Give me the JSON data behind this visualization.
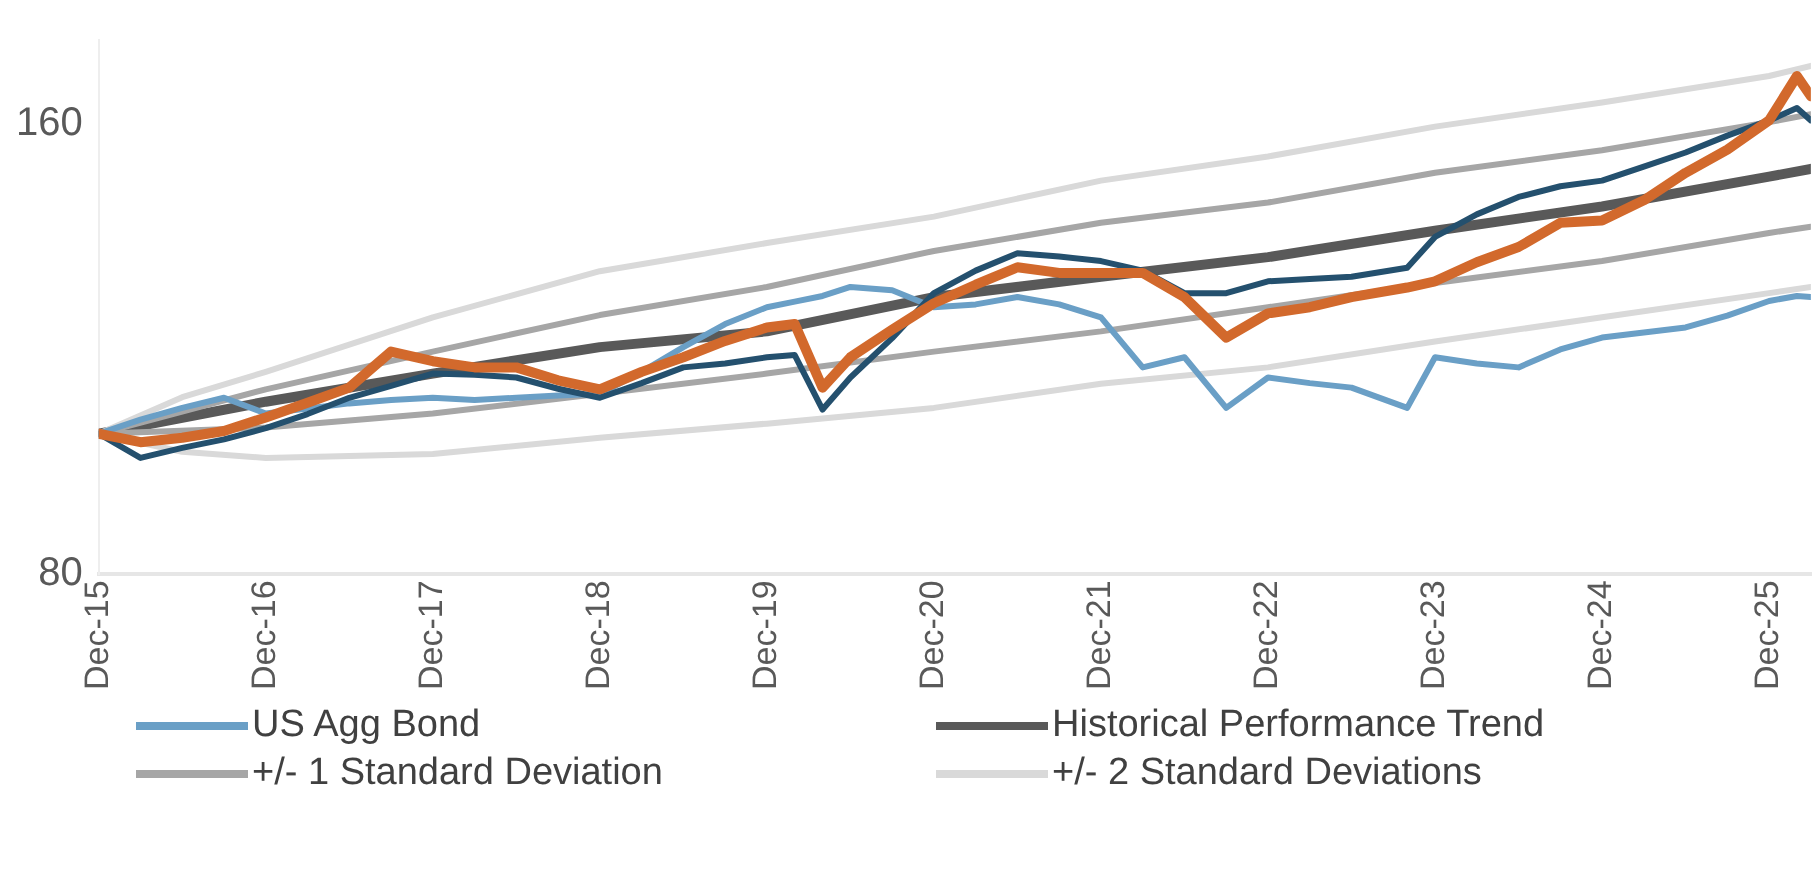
{
  "chart_data": {
    "type": "line",
    "x": [
      "2015-12",
      "2016-03",
      "2016-06",
      "2016-09",
      "2016-12",
      "2017-03",
      "2017-06",
      "2017-09",
      "2017-12",
      "2018-03",
      "2018-06",
      "2018-09",
      "2018-12",
      "2019-03",
      "2019-06",
      "2019-09",
      "2019-12",
      "2020-02",
      "2020-04",
      "2020-06",
      "2020-09",
      "2020-12",
      "2021-03",
      "2021-06",
      "2021-09",
      "2021-12",
      "2022-03",
      "2022-06",
      "2022-09",
      "2022-12",
      "2023-03",
      "2023-06",
      "2023-10",
      "2023-12",
      "2024-03",
      "2024-06",
      "2024-09",
      "2024-12",
      "2025-03",
      "2025-06",
      "2025-09",
      "2025-12",
      "2026-02",
      "2026-03"
    ],
    "series": [
      {
        "color": "#d2692c",
        "values": [
          105,
          103.5,
          104.3,
          105.5,
          107.9,
          110.5,
          113.2,
          119.6,
          117.9,
          116.8,
          116.8,
          114.5,
          112.9,
          116,
          118.6,
          121.5,
          123.9,
          124.5,
          113.2,
          118.6,
          123.5,
          128.2,
          131.5,
          134.6,
          133.6,
          133.6,
          133.6,
          129.3,
          122.1,
          126.4,
          127.5,
          129.3,
          131,
          132.1,
          135.5,
          138.2,
          142.5,
          142.9,
          146.5,
          151.4,
          155.5,
          160.7,
          168.6,
          165
        ]
      },
      {
        "color": "#24506e",
        "values": [
          105,
          100.7,
          102.5,
          104,
          106,
          108.5,
          111.4,
          113.5,
          115.7,
          115.5,
          115,
          113,
          111.4,
          114,
          116.8,
          117.5,
          118.6,
          119,
          109.3,
          115,
          122,
          130,
          134,
          137.1,
          136.5,
          135.7,
          134,
          130,
          130,
          132.1,
          132.5,
          132.9,
          134.5,
          140,
          144,
          147.1,
          149,
          150,
          152.5,
          155,
          158,
          160.7,
          162.9,
          160.7
        ]
      },
      {
        "name": "US Agg Bond",
        "color": "#6a9fc6",
        "values": [
          105,
          107.5,
          109.6,
          111.4,
          108.6,
          109.5,
          110.4,
          111,
          111.4,
          111,
          111.4,
          111.8,
          112.1,
          116,
          120.4,
          124.5,
          127.5,
          128.5,
          129.5,
          131.1,
          130.5,
          127.5,
          128,
          129.3,
          128,
          125.7,
          116.8,
          118.6,
          109.6,
          115,
          114,
          113.2,
          109.6,
          118.6,
          117.5,
          116.8,
          120,
          122.1,
          123,
          123.9,
          126,
          128.6,
          129.5,
          129.3
        ]
      },
      {
        "name": "Historical Performance Trend",
        "type": "line",
        "color": "#595959",
        "x": [
          "2015-12",
          "2016-12",
          "2017-12",
          "2018-12",
          "2019-12",
          "2020-12",
          "2021-12",
          "2022-12",
          "2023-12",
          "2024-12",
          "2025-12",
          "2026-03"
        ],
        "values": [
          105,
          110.7,
          115.7,
          120.4,
          123.2,
          129.3,
          132.9,
          136.4,
          141.1,
          145.4,
          150.7,
          152.1
        ]
      },
      {
        "name": "+/- 1 Standard Deviation",
        "type": "line",
        "color": "#a6a6a6",
        "x": [
          "2015-12",
          "2016-12",
          "2017-12",
          "2018-12",
          "2019-12",
          "2020-12",
          "2021-12",
          "2022-12",
          "2023-12",
          "2024-12",
          "2025-12",
          "2026-03"
        ],
        "values": [
          105,
          112.9,
          119.6,
          126.1,
          131.1,
          137.5,
          142.5,
          146.1,
          151.4,
          155.4,
          160.4,
          161.8
        ]
      },
      {
        "type": "line",
        "color": "#a6a6a6",
        "x": [
          "2015-12",
          "2016-12",
          "2017-12",
          "2018-12",
          "2019-12",
          "2020-12",
          "2021-12",
          "2022-12",
          "2023-12",
          "2024-12",
          "2025-12",
          "2026-03"
        ],
        "values": [
          105,
          106.1,
          108.6,
          112.1,
          115.7,
          119.6,
          123.2,
          127.5,
          131.8,
          135.7,
          140.7,
          141.8
        ]
      },
      {
        "name": "+/- 2 Standard Deviations",
        "type": "line",
        "color": "#d9d9d9",
        "x": [
          "2015-12",
          "2016-06",
          "2016-12",
          "2017-12",
          "2018-12",
          "2019-12",
          "2020-12",
          "2021-12",
          "2022-12",
          "2023-12",
          "2024-12",
          "2025-12",
          "2026-03"
        ],
        "values": [
          105,
          111.5,
          116,
          125.7,
          133.9,
          138.9,
          143.6,
          150,
          154.3,
          159.6,
          163.9,
          168.6,
          170.4
        ]
      },
      {
        "type": "line",
        "color": "#d9d9d9",
        "x": [
          "2015-12",
          "2016-06",
          "2016-12",
          "2017-12",
          "2018-12",
          "2019-12",
          "2020-12",
          "2021-12",
          "2022-12",
          "2023-12",
          "2024-12",
          "2025-12",
          "2026-03"
        ],
        "values": [
          105,
          101.8,
          100.7,
          101.4,
          104.3,
          106.8,
          109.6,
          113.9,
          116.8,
          121.4,
          125.7,
          130,
          131.1
        ]
      }
    ],
    "xlim": [
      "2015-12",
      "2026-03"
    ],
    "xticks": [
      {
        "value": "2015-12",
        "label": "Dec-15"
      },
      {
        "value": "2016-12",
        "label": "Dec-16"
      },
      {
        "value": "2017-12",
        "label": "Dec-17"
      },
      {
        "value": "2018-12",
        "label": "Dec-18"
      },
      {
        "value": "2019-12",
        "label": "Dec-19"
      },
      {
        "value": "2020-12",
        "label": "Dec-20"
      },
      {
        "value": "2021-12",
        "label": "Dec-21"
      },
      {
        "value": "2022-12",
        "label": "Dec-22"
      },
      {
        "value": "2023-12",
        "label": "Dec-23"
      },
      {
        "value": "2024-12",
        "label": "Dec-24"
      },
      {
        "value": "2025-12",
        "label": "Dec-25"
      }
    ],
    "ylim": [
      80,
      175
    ],
    "yticks": [
      80,
      160
    ],
    "grid": false,
    "legend": "bottom",
    "marker": "none",
    "line_style": "solid"
  }
}
